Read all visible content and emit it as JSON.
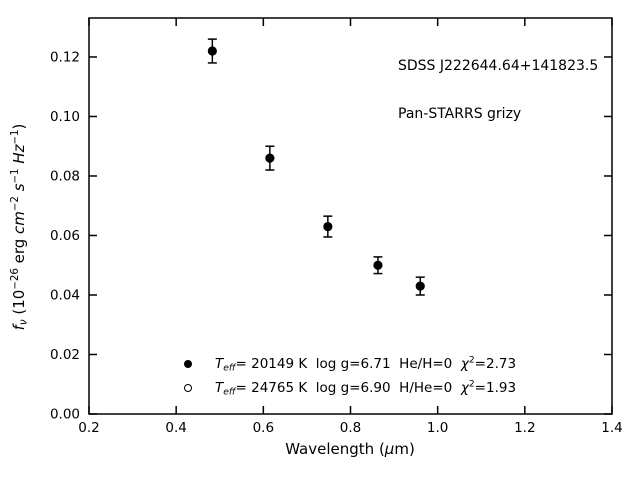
{
  "figure": {
    "background": "#ffffff",
    "foreground": "#000000"
  },
  "chart_data": {
    "type": "scatter",
    "title": "",
    "annotation": [
      "SDSS J222644.64+141823.5",
      "Pan-STARRS grizy"
    ],
    "xlabel": "Wavelength (μm)",
    "ylabel": "f_ν (10^−26 erg cm^−2 s^−1 Hz^−1)",
    "xlim": [
      0.2,
      1.4
    ],
    "ylim": [
      0.0,
      0.1331
    ],
    "xticks": [
      0.2,
      0.4,
      0.6,
      0.8,
      1.0,
      1.2,
      1.4
    ],
    "xtick_labels": [
      "0.2",
      "0.4",
      "0.6",
      "0.8",
      "1.0",
      "1.2",
      "1.4"
    ],
    "yticks": [
      0.0,
      0.02,
      0.04,
      0.06,
      0.08,
      0.1,
      0.12
    ],
    "ytick_labels": [
      "0.00",
      "0.02",
      "0.04",
      "0.06",
      "0.08",
      "0.10",
      "0.12"
    ],
    "grid": false,
    "legend_position": "lower center, frameless",
    "series": [
      {
        "name": "Teff= 20149 K  log g=6.71  He/H=0  chi2=2.73",
        "marker": "filled-circle",
        "x": [
          0.483,
          0.615,
          0.748,
          0.863,
          0.96
        ],
        "y": [
          0.122,
          0.086,
          0.063,
          0.05,
          0.043
        ],
        "yerr": [
          0.004,
          0.004,
          0.0035,
          0.0028,
          0.003
        ]
      },
      {
        "name": "Teff= 24765 K  log g=6.90  H/He=0  chi2=1.93",
        "marker": "open-circle",
        "x": [],
        "y": [],
        "yerr": []
      }
    ]
  },
  "axes": {
    "xlabel": {
      "pre": "Wavelength (",
      "mu": "μ",
      "post": "m)"
    },
    "ylabel": {
      "f": "f",
      "nu": "ν",
      "p1": " (10",
      "sup1": "−26",
      "p2": " erg ",
      "cm": "cm",
      "sup2": "−2",
      "sp1": " ",
      "s": "s",
      "sup3": "−1",
      "sp2": " ",
      "hz": "Hz",
      "sup4": "−1",
      "p3": ")"
    }
  },
  "legend": {
    "rows": [
      {
        "marker": "filled-circle",
        "t": "T",
        "t_sub": "eff",
        "mid": "= 20149 K  log g=6.71  He/H=0  ",
        "chi": "χ",
        "chi_sup": "2",
        "chi_tail": "=2.73"
      },
      {
        "marker": "open-circle",
        "t": "T",
        "t_sub": "eff",
        "mid": "= 24765 K  log g=6.90  H/He=0  ",
        "chi": "χ",
        "chi_sup": "2",
        "chi_tail": "=1.93"
      }
    ]
  }
}
